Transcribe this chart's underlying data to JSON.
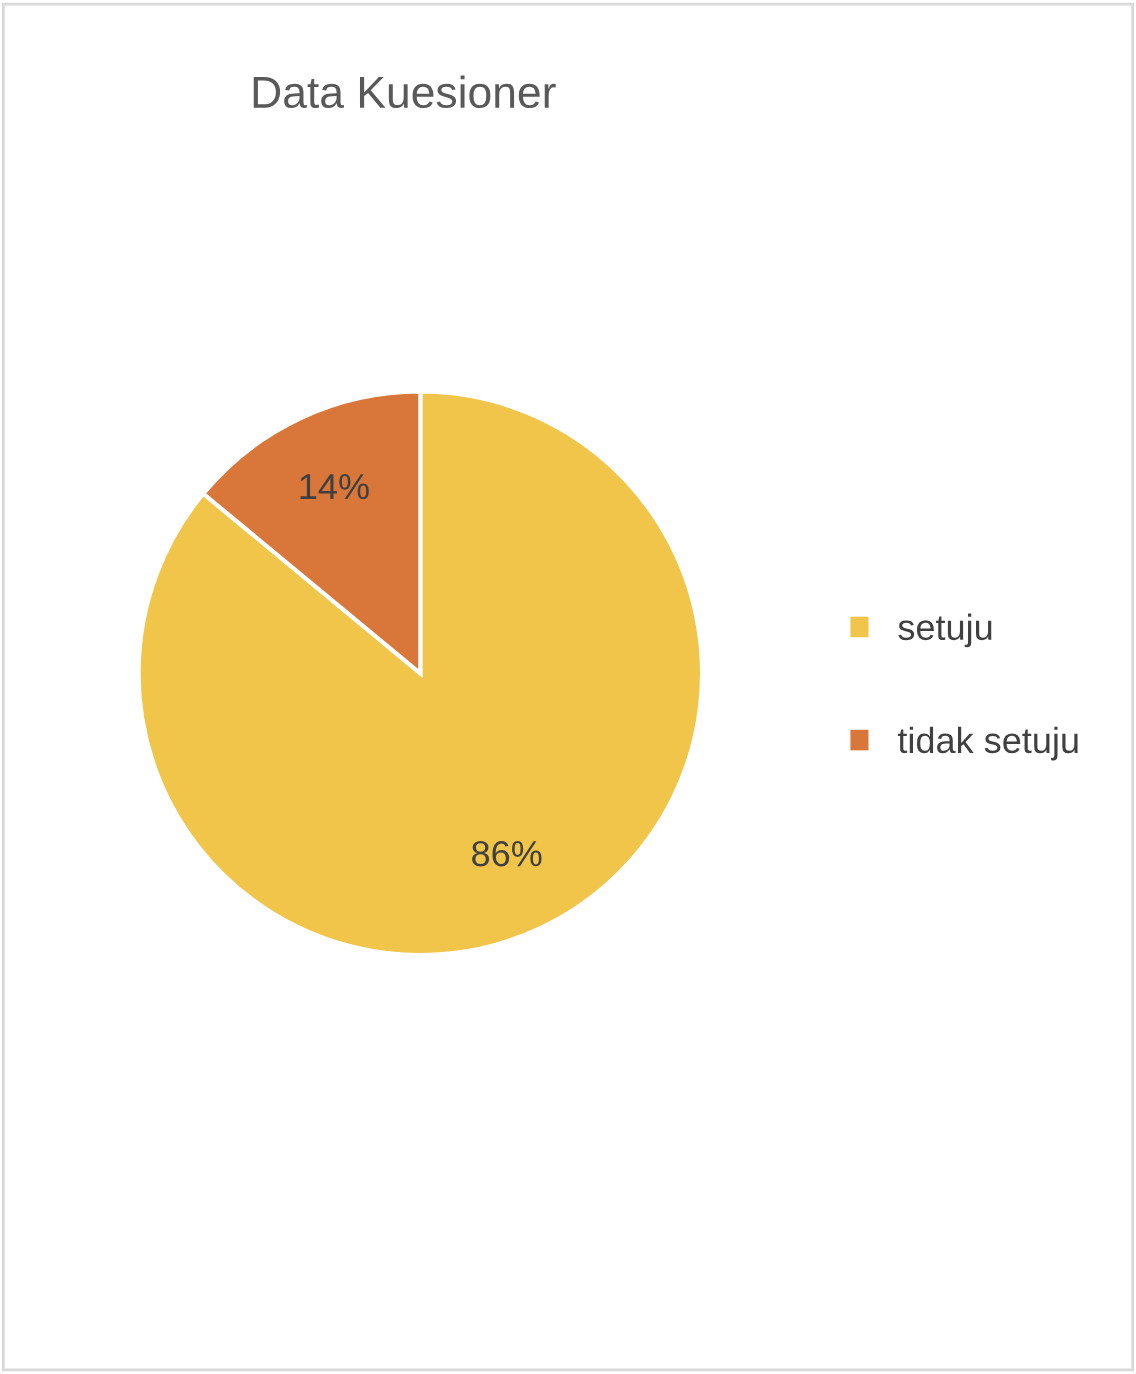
{
  "chart_data": {
    "type": "pie",
    "title": "Data Kuesioner",
    "categories": [
      "setuju",
      "tidak setuju"
    ],
    "values": [
      86,
      14
    ],
    "colors": [
      "#f0c54a",
      "#d9773a"
    ],
    "value_labels": [
      "86%",
      "14%"
    ],
    "legend": "right"
  }
}
